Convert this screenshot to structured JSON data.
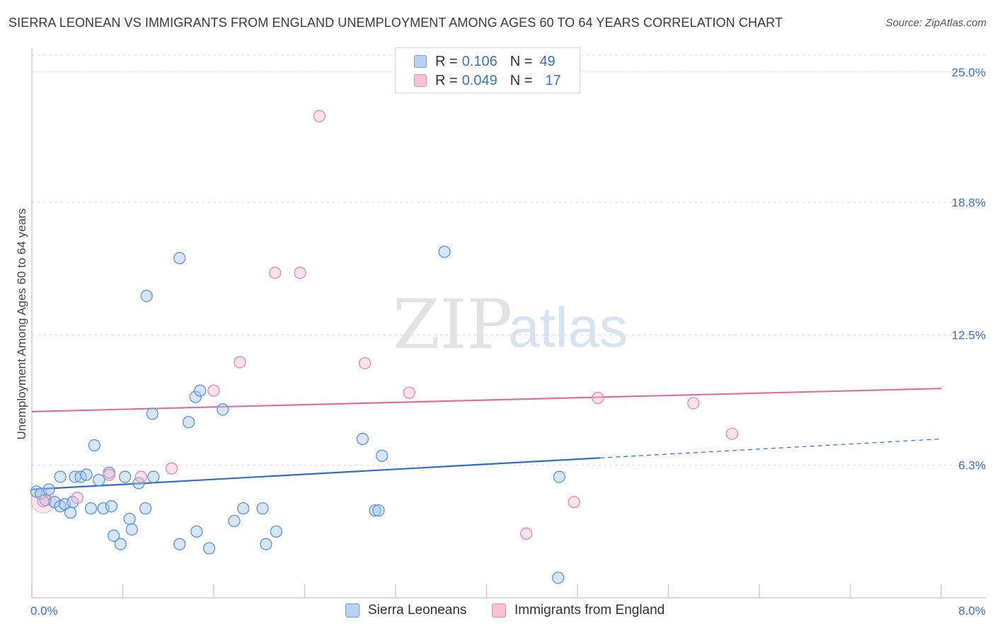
{
  "title": "SIERRA LEONEAN VS IMMIGRANTS FROM ENGLAND UNEMPLOYMENT AMONG AGES 60 TO 64 YEARS CORRELATION CHART",
  "source": "Source: ZipAtlas.com",
  "watermark": {
    "zip": "ZIP",
    "atlas": "atlas"
  },
  "legend": {
    "rows": [
      {
        "r_label": "R =",
        "r_value": "0.106",
        "n_label": "N =",
        "n_value": "49"
      },
      {
        "r_label": "R =",
        "r_value": "0.049",
        "n_label": "N =",
        "n_value": "17"
      }
    ]
  },
  "colors": {
    "blue": "#5b93d6",
    "pink": "#e48aa8",
    "blue_line": "#2f6fc9",
    "pink_line": "#e0709a"
  },
  "chart_data": {
    "type": "scatter",
    "title": "SIERRA LEONEAN VS IMMIGRANTS FROM ENGLAND UNEMPLOYMENT AMONG AGES 60 TO 64 YEARS CORRELATION CHART",
    "xlabel": "",
    "ylabel": "Unemployment Among Ages 60 to 64 years",
    "xlim": [
      0,
      8
    ],
    "ylim": [
      0,
      25.8
    ],
    "x_tick_labels": [
      "0.0%",
      "8.0%"
    ],
    "y_tick_labels": [
      "25.0%",
      "18.8%",
      "12.5%",
      "6.3%"
    ],
    "y_tick_values": [
      25.0,
      18.8,
      12.5,
      6.3
    ],
    "legend_position": "bottom",
    "series": [
      {
        "name": "Sierra Leoneans",
        "r": 0.106,
        "n": 49,
        "trend": {
          "x0": 0.0,
          "y0": 5.15,
          "x1": 5.0,
          "y1": 6.65,
          "dash_x1": 8.0,
          "dash_y1": 7.55
        },
        "points": [
          [
            0.04,
            5.05
          ],
          [
            0.08,
            4.95
          ],
          [
            0.12,
            4.65
          ],
          [
            0.15,
            5.15
          ],
          [
            0.2,
            4.55
          ],
          [
            0.25,
            4.35
          ],
          [
            0.25,
            5.75
          ],
          [
            0.29,
            4.45
          ],
          [
            0.34,
            4.05
          ],
          [
            0.36,
            4.55
          ],
          [
            0.38,
            5.75
          ],
          [
            0.43,
            5.75
          ],
          [
            0.48,
            5.85
          ],
          [
            0.52,
            4.25
          ],
          [
            0.55,
            7.25
          ],
          [
            0.59,
            5.6
          ],
          [
            0.63,
            4.25
          ],
          [
            0.68,
            5.95
          ],
          [
            0.7,
            4.35
          ],
          [
            0.72,
            2.95
          ],
          [
            0.78,
            2.55
          ],
          [
            0.82,
            5.75
          ],
          [
            0.86,
            3.75
          ],
          [
            0.88,
            3.25
          ],
          [
            0.94,
            5.45
          ],
          [
            1.0,
            4.25
          ],
          [
            1.07,
            5.75
          ],
          [
            1.06,
            8.75
          ],
          [
            1.01,
            14.35
          ],
          [
            1.3,
            16.15
          ],
          [
            1.3,
            2.55
          ],
          [
            1.38,
            8.35
          ],
          [
            1.45,
            3.15
          ],
          [
            1.44,
            9.55
          ],
          [
            1.48,
            9.85
          ],
          [
            1.56,
            2.35
          ],
          [
            1.68,
            8.95
          ],
          [
            1.78,
            3.65
          ],
          [
            1.86,
            4.25
          ],
          [
            2.03,
            4.25
          ],
          [
            2.06,
            2.55
          ],
          [
            2.15,
            3.15
          ],
          [
            2.91,
            7.55
          ],
          [
            3.02,
            4.15
          ],
          [
            3.05,
            4.15
          ],
          [
            3.08,
            6.75
          ],
          [
            3.63,
            16.45
          ],
          [
            4.64,
            5.75
          ],
          [
            4.63,
            0.95
          ]
        ]
      },
      {
        "name": "Immigrants from England",
        "r": 0.049,
        "n": 17,
        "trend": {
          "x0": 0.0,
          "y0": 8.85,
          "x1": 8.0,
          "y1": 9.95
        },
        "points": [
          [
            0.1,
            4.6
          ],
          [
            0.4,
            4.75
          ],
          [
            0.68,
            5.85
          ],
          [
            0.96,
            5.75
          ],
          [
            1.23,
            6.15
          ],
          [
            1.6,
            9.85
          ],
          [
            1.83,
            11.2
          ],
          [
            2.14,
            15.45
          ],
          [
            2.36,
            15.45
          ],
          [
            2.53,
            22.9
          ],
          [
            2.93,
            11.15
          ],
          [
            3.32,
            9.75
          ],
          [
            4.35,
            3.05
          ],
          [
            4.77,
            4.55
          ],
          [
            4.98,
            9.5
          ],
          [
            5.82,
            9.25
          ],
          [
            6.16,
            7.8
          ]
        ]
      }
    ]
  },
  "bottom_legend": {
    "items": [
      {
        "label": "Sierra Leoneans"
      },
      {
        "label": "Immigrants from England"
      }
    ]
  }
}
